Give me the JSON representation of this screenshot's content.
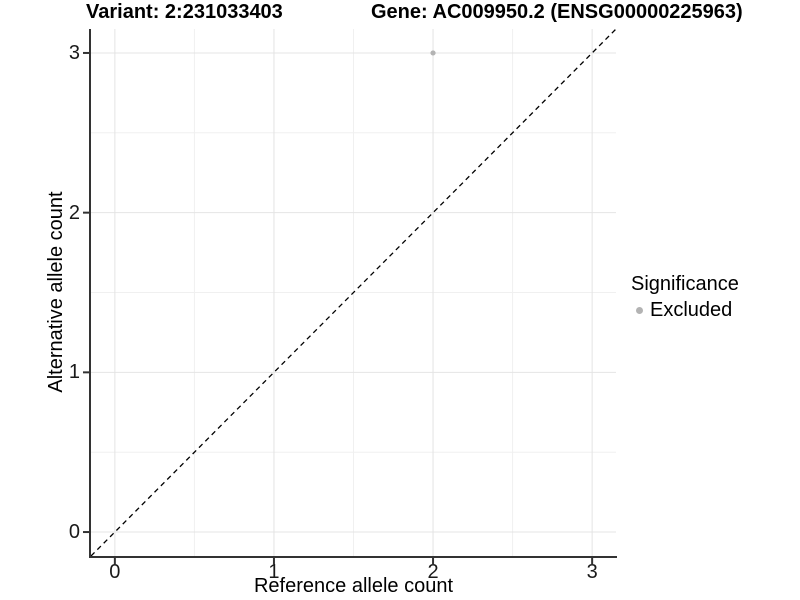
{
  "chart_data": {
    "type": "scatter",
    "title_left": "Variant: 2:231033403",
    "title_right": "Gene: AC009950.2 (ENSG00000225963)",
    "xlabel": "Reference allele count",
    "ylabel": "Alternative allele count",
    "xlim": [
      -0.15,
      3.15
    ],
    "ylim": [
      -0.15,
      3.15
    ],
    "x_ticks": [
      0,
      1,
      2,
      3
    ],
    "x_minor": [
      0.5,
      1.5,
      2.5
    ],
    "y_ticks": [
      0,
      1,
      2,
      3
    ],
    "y_minor": [
      0.5,
      1.5,
      2.5
    ],
    "grid": true,
    "points": [
      {
        "x": 2,
        "y": 3,
        "series": "Excluded"
      }
    ],
    "identity_line": {
      "style": "dashed",
      "slope": 1,
      "intercept": 0
    },
    "legend": {
      "title": "Significance",
      "position": "right",
      "entries": [
        {
          "label": "Excluded",
          "color": "#b3b3b3"
        }
      ]
    },
    "colors": {
      "point": "#b3b3b3",
      "grid_major": "#e4e4e4",
      "grid_minor": "#f0f0f0",
      "axis": "#333333",
      "reference_line": "#000000",
      "background": "#ffffff"
    }
  }
}
